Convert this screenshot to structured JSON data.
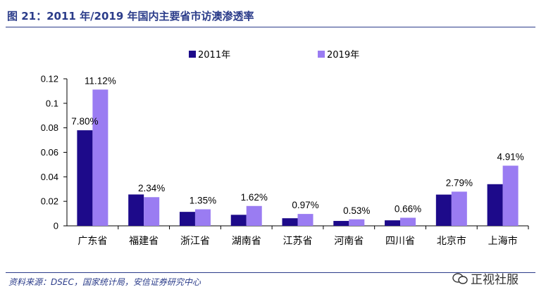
{
  "header": {
    "title": "图 21：2011 年/2019 年国内主要省市访澳渗透率"
  },
  "footer": {
    "source": "资料来源：DSEC，国家统计局，安信证券研究中心",
    "watermark_text": "正视社服"
  },
  "colors": {
    "series_2011": "#1d0a8a",
    "series_2019": "#9a7cf2",
    "title": "#2b3c8a"
  },
  "chart_data": {
    "type": "bar",
    "categories": [
      "广东省",
      "福建省",
      "浙江省",
      "湖南省",
      "江苏省",
      "河南省",
      "四川省",
      "北京市",
      "上海市"
    ],
    "series": [
      {
        "name": "2011年",
        "values": [
          0.078,
          0.0256,
          0.0114,
          0.009,
          0.0062,
          0.004,
          0.0045,
          0.0255,
          0.034
        ]
      },
      {
        "name": "2019年",
        "values": [
          0.1112,
          0.0234,
          0.0135,
          0.0162,
          0.0097,
          0.0053,
          0.0066,
          0.0279,
          0.0491
        ]
      }
    ],
    "data_labels": [
      "7.80%",
      "11.12%",
      "2.34%",
      "1.35%",
      "1.62%",
      "0.97%",
      "0.53%",
      "0.66%",
      "2.79%",
      "4.91%"
    ],
    "yticks": [
      "0",
      "0.02",
      "0.04",
      "0.06",
      "0.08",
      "0.1",
      "0.12"
    ],
    "ylim": [
      0,
      0.12
    ],
    "legend_position": "top-center",
    "grid": false
  }
}
